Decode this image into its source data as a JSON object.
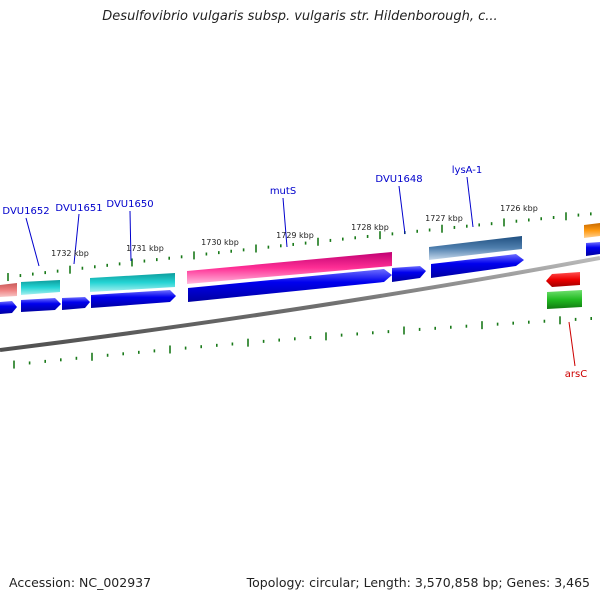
{
  "title": "Desulfovibrio vulgaris subsp. vulgaris str. Hildenborough, c...",
  "footer": {
    "accession": "Accession: NC_002937",
    "summary": "Topology: circular; Length: 3,570,858 bp; Genes: 3,465"
  },
  "colors": {
    "backbone": "#808080",
    "tick": "#1a7a1a",
    "forward_gene": "#0000e6",
    "gene_label": "#0000cc",
    "reverse_label": "#cc0000"
  },
  "kbp_labels": [
    "1732 kbp",
    "1731 kbp",
    "1730 kbp",
    "1729 kbp",
    "1728 kbp",
    "1727 kbp",
    "1726 kbp"
  ],
  "gene_labels": [
    {
      "name": "DVU1652",
      "color": "#0000cc"
    },
    {
      "name": "DVU1651",
      "color": "#0000cc"
    },
    {
      "name": "DVU1650",
      "color": "#0000cc"
    },
    {
      "name": "mutS",
      "color": "#0000cc"
    },
    {
      "name": "DVU1648",
      "color": "#0000cc"
    },
    {
      "name": "lysA-1",
      "color": "#0000cc"
    },
    {
      "name": "arsC",
      "color": "#cc0000"
    }
  ]
}
